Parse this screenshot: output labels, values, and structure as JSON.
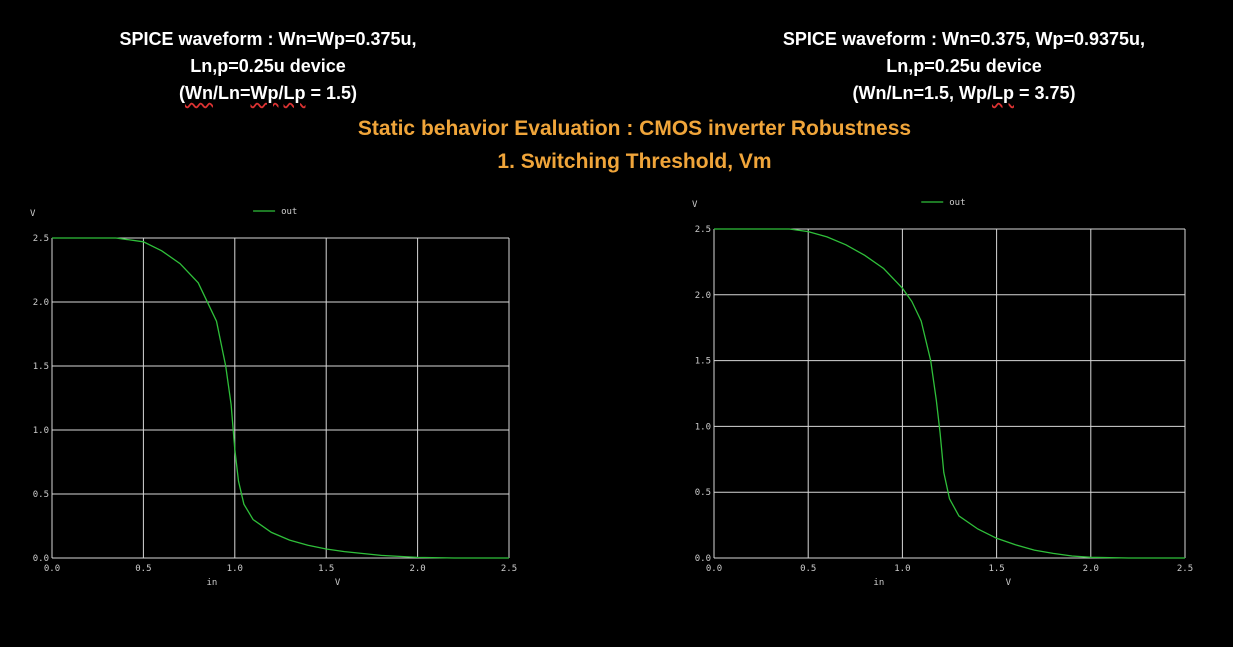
{
  "left_caption": {
    "line1": "SPICE waveform : Wn=Wp=0.375u,",
    "line2": "Ln,p=0.25u device",
    "line3_open": "(",
    "line3_wn": "Wn",
    "line3_mid": "/Ln=",
    "line3_wp": "Wp",
    "line3_slash": "/",
    "line3_lp": "Lp",
    "line3_end": " = 1.5)"
  },
  "right_caption": {
    "line1": "SPICE waveform : Wn=0.375, Wp=0.9375u,",
    "line2": "Ln,p=0.25u device",
    "line3_a": "(Wn/Ln=1.5, Wp/",
    "line3_lp": "Lp",
    "line3_b": " = 3.75)"
  },
  "headline": {
    "line1": "Static behavior Evaluation : CMOS inverter Robustness",
    "line2": "1. Switching Threshold, Vm"
  },
  "colors": {
    "curve": "#2fbf3a",
    "grid": "#d8d8d8",
    "headline": "#f0a53a"
  },
  "chart_data": [
    {
      "type": "line",
      "xlabel": "in",
      "xunit": "V",
      "yunit": "V",
      "xlim": [
        0,
        2.5
      ],
      "ylim": [
        0,
        2.5
      ],
      "grid": true,
      "legend_placement": "top-center",
      "x_ticks": [
        "0.0",
        "0.5",
        "1.0",
        "1.5",
        "2.0",
        "2.5"
      ],
      "y_ticks": [
        "0.0",
        "0.5",
        "1.0",
        "1.5",
        "2.0",
        "2.5"
      ],
      "series": [
        {
          "name": "out",
          "x": [
            0,
            0.35,
            0.5,
            0.6,
            0.7,
            0.8,
            0.9,
            0.95,
            0.98,
            1.0,
            1.02,
            1.05,
            1.1,
            1.2,
            1.3,
            1.4,
            1.5,
            1.6,
            1.8,
            2.0,
            2.2,
            2.5
          ],
          "y": [
            2.5,
            2.5,
            2.47,
            2.4,
            2.3,
            2.15,
            1.85,
            1.5,
            1.2,
            0.85,
            0.6,
            0.42,
            0.3,
            0.2,
            0.14,
            0.1,
            0.07,
            0.05,
            0.02,
            0.005,
            0,
            0
          ]
        }
      ]
    },
    {
      "type": "line",
      "xlabel": "in",
      "xunit": "V",
      "yunit": "V",
      "xlim": [
        0,
        2.5
      ],
      "ylim": [
        0,
        2.5
      ],
      "grid": true,
      "legend_placement": "top-center",
      "x_ticks": [
        "0.0",
        "0.5",
        "1.0",
        "1.5",
        "2.0",
        "2.5"
      ],
      "y_ticks": [
        "0.0",
        "0.5",
        "1.0",
        "1.5",
        "2.0",
        "2.5"
      ],
      "series": [
        {
          "name": "out",
          "x": [
            0,
            0.4,
            0.5,
            0.6,
            0.7,
            0.8,
            0.9,
            1.0,
            1.05,
            1.1,
            1.15,
            1.18,
            1.2,
            1.22,
            1.25,
            1.3,
            1.4,
            1.5,
            1.6,
            1.7,
            1.8,
            1.9,
            2.0,
            2.2,
            2.5
          ],
          "y": [
            2.5,
            2.5,
            2.48,
            2.44,
            2.38,
            2.3,
            2.2,
            2.05,
            1.95,
            1.8,
            1.5,
            1.2,
            0.95,
            0.65,
            0.45,
            0.32,
            0.22,
            0.15,
            0.1,
            0.06,
            0.035,
            0.015,
            0.005,
            0,
            0
          ]
        }
      ]
    }
  ]
}
